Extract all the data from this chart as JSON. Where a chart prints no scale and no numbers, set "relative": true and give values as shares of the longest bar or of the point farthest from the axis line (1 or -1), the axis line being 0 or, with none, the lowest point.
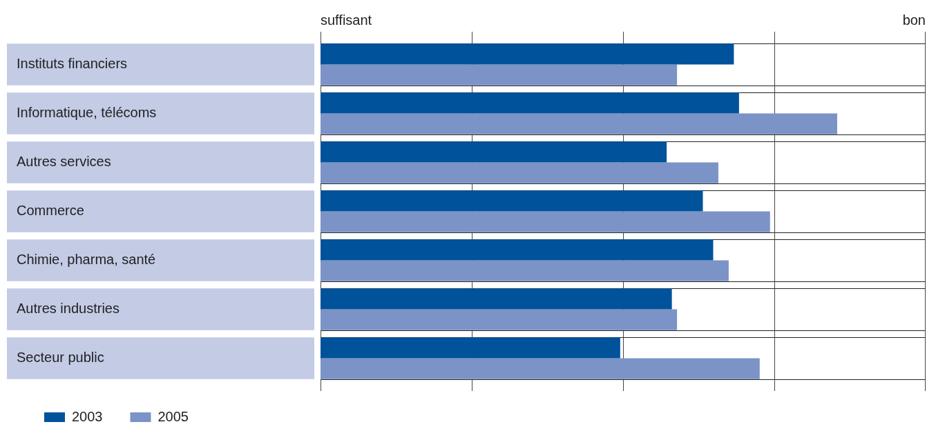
{
  "chart_data": {
    "type": "bar",
    "orientation": "horizontal",
    "relative": true,
    "categories": [
      "Instituts financiers",
      "Informatique, télécoms",
      "Autres services",
      "Commerce",
      "Chimie, pharma, santé",
      "Autres industries",
      "Secteur public"
    ],
    "series": [
      {
        "name": "2003",
        "color": "#00529b",
        "values": [
          0.8,
          0.81,
          0.67,
          0.74,
          0.76,
          0.68,
          0.58
        ]
      },
      {
        "name": "2005",
        "color": "#7b93c6",
        "values": [
          0.69,
          1,
          0.77,
          0.87,
          0.79,
          0.69,
          0.85
        ]
      }
    ],
    "annotations": [
      "suffisant",
      "bon"
    ],
    "legend": "bottom left"
  }
}
